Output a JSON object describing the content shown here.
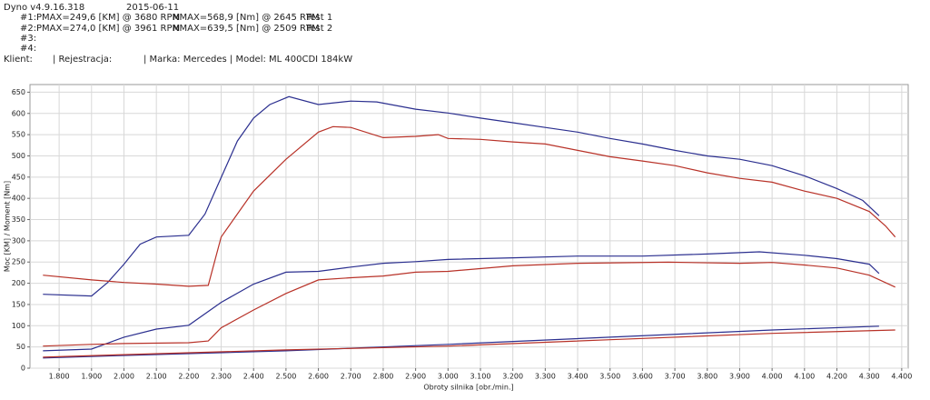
{
  "header": {
    "app": "Dyno v4.9.16.318",
    "date": "2015-06-11",
    "tests": [
      {
        "id": "#1:",
        "pmax": "PMAX=249,6 [KM] @ 3680 RPM",
        "nmax": "NMAX=568,9 [Nm] @ 2645 RPM",
        "name": "Test 1"
      },
      {
        "id": "#2:",
        "pmax": "PMAX=274,0 [KM] @ 3961 RPM",
        "nmax": "NMAX=639,5 [Nm] @ 2509 RPM",
        "name": "Test 2"
      },
      {
        "id": "#3:"
      },
      {
        "id": "#4:"
      }
    ],
    "client": "Klient:",
    "registration": "| Rejestracja:",
    "vehicle": "| Marka: Mercedes | Model: ML 400CDI 184kW"
  },
  "chart_data": {
    "type": "line",
    "x_label": "Obroty silnika [obr./min.]",
    "y_label": "Moc [KM] / Moment [Nm]",
    "xlim": [
      1710,
      4420
    ],
    "ylim": [
      0,
      668
    ],
    "grid": true,
    "xticks": [
      {
        "value": 1800,
        "label": "1.800"
      },
      {
        "value": 1900,
        "label": "1.900"
      },
      {
        "value": 2000,
        "label": "2.000"
      },
      {
        "value": 2100,
        "label": "2.100"
      },
      {
        "value": 2200,
        "label": "2.200"
      },
      {
        "value": 2300,
        "label": "2.300"
      },
      {
        "value": 2400,
        "label": "2.400"
      },
      {
        "value": 2500,
        "label": "2.500"
      },
      {
        "value": 2600,
        "label": "2.600"
      },
      {
        "value": 2700,
        "label": "2.700"
      },
      {
        "value": 2800,
        "label": "2.800"
      },
      {
        "value": 2900,
        "label": "2.900"
      },
      {
        "value": 3000,
        "label": "3.000"
      },
      {
        "value": 3100,
        "label": "3.100"
      },
      {
        "value": 3200,
        "label": "3.200"
      },
      {
        "value": 3300,
        "label": "3.300"
      },
      {
        "value": 3400,
        "label": "3.400"
      },
      {
        "value": 3500,
        "label": "3.500"
      },
      {
        "value": 3600,
        "label": "3.600"
      },
      {
        "value": 3700,
        "label": "3.700"
      },
      {
        "value": 3800,
        "label": "3.800"
      },
      {
        "value": 3900,
        "label": "3.900"
      },
      {
        "value": 4000,
        "label": "4.000"
      },
      {
        "value": 4100,
        "label": "4.100"
      },
      {
        "value": 4200,
        "label": "4.200"
      },
      {
        "value": 4300,
        "label": "4.300"
      },
      {
        "value": 4400,
        "label": "4.400"
      }
    ],
    "yticks": [
      0,
      50,
      100,
      150,
      200,
      250,
      300,
      350,
      400,
      450,
      500,
      550,
      600,
      650
    ],
    "series": [
      {
        "color": "#2b2f8f",
        "x": [
          1750,
          1900,
          1950,
          2000,
          2050,
          2100,
          2200,
          2250,
          2300,
          2350,
          2400,
          2450,
          2509,
          2600,
          2700,
          2780,
          2900,
          3000,
          3100,
          3200,
          3300,
          3400,
          3500,
          3600,
          3700,
          3800,
          3900,
          4000,
          4100,
          4200,
          4280,
          4330
        ],
        "values": [
          174,
          170,
          202,
          245,
          292,
          309,
          313,
          363,
          449,
          535,
          589,
          621,
          639.5,
          621,
          629,
          627,
          610,
          601,
          589,
          578,
          567,
          556,
          541,
          528,
          513,
          500,
          492,
          477,
          453,
          423,
          395,
          359
        ]
      },
      {
        "color": "#b83228",
        "x": [
          1750,
          1900,
          2000,
          2100,
          2200,
          2260,
          2300,
          2400,
          2500,
          2600,
          2645,
          2700,
          2800,
          2900,
          2970,
          3000,
          3100,
          3200,
          3300,
          3400,
          3500,
          3600,
          3700,
          3800,
          3900,
          4000,
          4100,
          4200,
          4300,
          4350,
          4380
        ],
        "values": [
          219,
          208,
          202,
          198,
          193,
          195,
          309,
          417,
          492,
          556,
          568.9,
          567,
          543,
          546,
          550,
          541,
          539,
          533,
          528,
          513,
          498,
          488,
          477,
          460,
          447,
          438,
          417,
          400,
          369,
          335,
          309
        ]
      },
      {
        "color": "#2b2f8f",
        "x": [
          1750,
          1900,
          2000,
          2100,
          2200,
          2300,
          2400,
          2500,
          2600,
          2700,
          2800,
          2900,
          3000,
          3200,
          3400,
          3600,
          3800,
          3961,
          4100,
          4200,
          4300,
          4330
        ],
        "values": [
          41,
          45,
          73,
          92,
          101,
          155,
          198,
          226,
          228,
          238,
          247,
          251,
          256,
          260,
          264,
          264,
          269,
          274,
          266,
          258,
          245,
          223
        ]
      },
      {
        "color": "#b83228",
        "x": [
          1750,
          1900,
          2000,
          2200,
          2260,
          2300,
          2400,
          2500,
          2600,
          2700,
          2800,
          2900,
          3000,
          3200,
          3400,
          3680,
          3900,
          4000,
          4100,
          4200,
          4300,
          4380
        ],
        "values": [
          52,
          56,
          58,
          60,
          64,
          95,
          137,
          176,
          208,
          213,
          217,
          226,
          228,
          241,
          247,
          249.6,
          247,
          249,
          243,
          236,
          219,
          191
        ]
      },
      {
        "color": "#2b2f8f",
        "x": [
          1750,
          2000,
          2500,
          3000,
          3500,
          4000,
          4330
        ],
        "values": [
          24,
          30,
          41,
          56,
          73,
          90,
          99
        ]
      },
      {
        "color": "#b83228",
        "x": [
          1750,
          2000,
          2500,
          3000,
          3500,
          4000,
          4380
        ],
        "values": [
          26,
          32,
          43,
          52,
          67,
          82,
          90
        ]
      }
    ]
  }
}
